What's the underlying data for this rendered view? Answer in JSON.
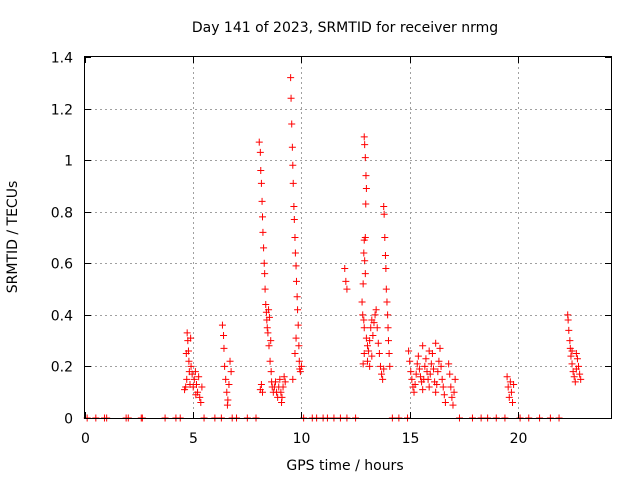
{
  "chart_data": {
    "type": "scatter",
    "title": "Day 141 of 2023, SRMTID for receiver nrmg",
    "xlabel": "GPS time / hours",
    "ylabel": "SRMTID / TECUs",
    "xlim": [
      0,
      24.3
    ],
    "ylim": [
      0,
      1.4
    ],
    "xticks": [
      0,
      5,
      10,
      15,
      20
    ],
    "xtick_labels": [
      "0",
      "5",
      "10",
      "15",
      "20"
    ],
    "yticks": [
      0,
      0.2,
      0.4,
      0.6,
      0.8,
      1,
      1.2,
      1.4
    ],
    "ytick_labels": [
      "0",
      "0.2",
      "0.4",
      "0.6",
      "0.8",
      "1",
      "1.2",
      "1.4"
    ],
    "grid": true,
    "marker": "+",
    "color": "#ff0000",
    "series": [
      {
        "name": "SRMTID",
        "points": [
          [
            0.1,
            0
          ],
          [
            0.5,
            0
          ],
          [
            0.9,
            0
          ],
          [
            1.0,
            0
          ],
          [
            1.9,
            0
          ],
          [
            2.0,
            0
          ],
          [
            2.6,
            0
          ],
          [
            2.65,
            0
          ],
          [
            3.7,
            0
          ],
          [
            4.2,
            0
          ],
          [
            4.4,
            0
          ],
          [
            4.6,
            0.11
          ],
          [
            4.65,
            0.12
          ],
          [
            4.7,
            0.15
          ],
          [
            4.72,
            0.33
          ],
          [
            4.75,
            0.3
          ],
          [
            4.78,
            0.26
          ],
          [
            4.8,
            0.22
          ],
          [
            4.82,
            0.18
          ],
          [
            4.85,
            0.13
          ],
          [
            4.9,
            0.2
          ],
          [
            4.95,
            0.17
          ],
          [
            5.0,
            0.12
          ],
          [
            5.05,
            0.15
          ],
          [
            5.1,
            0.18
          ],
          [
            5.15,
            0.13
          ],
          [
            5.2,
            0.1
          ],
          [
            5.3,
            0.08
          ],
          [
            5.35,
            0.06
          ],
          [
            5.4,
            0.12
          ],
          [
            4.68,
            0.25
          ],
          [
            4.88,
            0.31
          ],
          [
            5.12,
            0.09
          ],
          [
            5.25,
            0.16
          ],
          [
            5.5,
            0
          ],
          [
            6.0,
            0
          ],
          [
            6.3,
            0
          ],
          [
            6.35,
            0.36
          ],
          [
            6.4,
            0.32
          ],
          [
            6.45,
            0.2
          ],
          [
            6.5,
            0.15
          ],
          [
            6.55,
            0.1
          ],
          [
            6.6,
            0.07
          ],
          [
            6.65,
            0.13
          ],
          [
            6.7,
            0.22
          ],
          [
            6.75,
            0.18
          ],
          [
            6.42,
            0.27
          ],
          [
            6.58,
            0.05
          ],
          [
            6.8,
            0
          ],
          [
            7.0,
            0
          ],
          [
            7.5,
            0
          ],
          [
            7.9,
            0
          ],
          [
            8.05,
            1.07
          ],
          [
            8.1,
            1.03
          ],
          [
            8.12,
            0.96
          ],
          [
            8.15,
            0.91
          ],
          [
            8.18,
            0.84
          ],
          [
            8.2,
            0.78
          ],
          [
            8.22,
            0.72
          ],
          [
            8.25,
            0.66
          ],
          [
            8.28,
            0.6
          ],
          [
            8.3,
            0.56
          ],
          [
            8.32,
            0.5
          ],
          [
            8.35,
            0.44
          ],
          [
            8.38,
            0.41
          ],
          [
            8.4,
            0.38
          ],
          [
            8.42,
            0.35
          ],
          [
            8.45,
            0.33
          ],
          [
            8.5,
            0.28
          ],
          [
            8.55,
            0.22
          ],
          [
            8.6,
            0.18
          ],
          [
            8.62,
            0.14
          ],
          [
            8.65,
            0.12
          ],
          [
            8.7,
            0.1
          ],
          [
            8.75,
            0.12
          ],
          [
            8.8,
            0.14
          ],
          [
            8.85,
            0.1
          ],
          [
            8.9,
            0.08
          ],
          [
            8.95,
            0.12
          ],
          [
            9.0,
            0.15
          ],
          [
            9.05,
            0.1
          ],
          [
            9.1,
            0.08
          ],
          [
            9.15,
            0.12
          ],
          [
            9.2,
            0.16
          ],
          [
            9.25,
            0.14
          ],
          [
            8.1,
            0.11
          ],
          [
            8.15,
            0.13
          ],
          [
            8.2,
            0.1
          ],
          [
            8.48,
            0.42
          ],
          [
            8.52,
            0.39
          ],
          [
            8.58,
            0.3
          ],
          [
            9.08,
            0.06
          ],
          [
            9.5,
            1.32
          ],
          [
            9.52,
            1.24
          ],
          [
            9.55,
            1.14
          ],
          [
            9.58,
            1.05
          ],
          [
            9.6,
            0.98
          ],
          [
            9.62,
            0.91
          ],
          [
            9.65,
            0.82
          ],
          [
            9.67,
            0.77
          ],
          [
            9.7,
            0.7
          ],
          [
            9.72,
            0.64
          ],
          [
            9.75,
            0.59
          ],
          [
            9.77,
            0.53
          ],
          [
            9.8,
            0.47
          ],
          [
            9.82,
            0.42
          ],
          [
            9.85,
            0.36
          ],
          [
            9.88,
            0.28
          ],
          [
            9.9,
            0.22
          ],
          [
            9.92,
            0.19
          ],
          [
            9.95,
            0.18
          ],
          [
            10.0,
            0.2
          ],
          [
            9.6,
            0.15
          ],
          [
            9.7,
            0.25
          ],
          [
            9.75,
            0.31
          ],
          [
            10.1,
            0
          ],
          [
            10.5,
            0
          ],
          [
            10.7,
            0
          ],
          [
            11.0,
            0
          ],
          [
            11.2,
            0
          ],
          [
            11.5,
            0
          ],
          [
            11.8,
            0
          ],
          [
            12.1,
            0
          ],
          [
            12.5,
            0
          ],
          [
            12.0,
            0.58
          ],
          [
            12.05,
            0.53
          ],
          [
            12.1,
            0.5
          ],
          [
            12.9,
            1.09
          ],
          [
            12.92,
            1.06
          ],
          [
            12.95,
            1.01
          ],
          [
            12.98,
            0.94
          ],
          [
            13.0,
            0.89
          ],
          [
            12.97,
            0.83
          ],
          [
            12.95,
            0.7
          ],
          [
            12.9,
            0.69
          ],
          [
            12.88,
            0.64
          ],
          [
            12.92,
            0.61
          ],
          [
            12.95,
            0.56
          ],
          [
            12.85,
            0.52
          ],
          [
            12.8,
            0.45
          ],
          [
            12.83,
            0.4
          ],
          [
            12.88,
            0.38
          ],
          [
            12.9,
            0.35
          ],
          [
            13.0,
            0.31
          ],
          [
            13.05,
            0.28
          ],
          [
            13.1,
            0.26
          ],
          [
            13.15,
            0.3
          ],
          [
            13.2,
            0.35
          ],
          [
            13.25,
            0.38
          ],
          [
            13.3,
            0.32
          ],
          [
            13.35,
            0.37
          ],
          [
            13.4,
            0.4
          ],
          [
            13.45,
            0.42
          ],
          [
            13.5,
            0.35
          ],
          [
            13.55,
            0.29
          ],
          [
            13.6,
            0.25
          ],
          [
            13.65,
            0.2
          ],
          [
            13.7,
            0.17
          ],
          [
            12.85,
            0.21
          ],
          [
            12.9,
            0.25
          ],
          [
            13.05,
            0.22
          ],
          [
            13.15,
            0.2
          ],
          [
            13.25,
            0.24
          ],
          [
            13.8,
            0.82
          ],
          [
            13.82,
            0.79
          ],
          [
            13.85,
            0.7
          ],
          [
            13.88,
            0.63
          ],
          [
            13.9,
            0.58
          ],
          [
            13.92,
            0.5
          ],
          [
            13.95,
            0.45
          ],
          [
            13.98,
            0.4
          ],
          [
            14.0,
            0.35
          ],
          [
            14.02,
            0.3
          ],
          [
            14.05,
            0.25
          ],
          [
            14.08,
            0.2
          ],
          [
            13.75,
            0.15
          ],
          [
            13.8,
            0.19
          ],
          [
            14.2,
            0
          ],
          [
            14.5,
            0
          ],
          [
            14.9,
            0
          ],
          [
            14.95,
            0.26
          ],
          [
            15.0,
            0.22
          ],
          [
            15.05,
            0.18
          ],
          [
            15.1,
            0.15
          ],
          [
            15.15,
            0.12
          ],
          [
            15.2,
            0.1
          ],
          [
            15.25,
            0.13
          ],
          [
            15.3,
            0.17
          ],
          [
            15.35,
            0.21
          ],
          [
            15.4,
            0.24
          ],
          [
            15.45,
            0.19
          ],
          [
            15.5,
            0.16
          ],
          [
            15.55,
            0.14
          ],
          [
            15.6,
            0.11
          ],
          [
            15.65,
            0.15
          ],
          [
            15.7,
            0.2
          ],
          [
            15.75,
            0.23
          ],
          [
            15.8,
            0.18
          ],
          [
            15.85,
            0.15
          ],
          [
            15.9,
            0.12
          ],
          [
            15.95,
            0.17
          ],
          [
            16.0,
            0.21
          ],
          [
            16.05,
            0.25
          ],
          [
            16.1,
            0.19
          ],
          [
            16.15,
            0.14
          ],
          [
            16.2,
            0.1
          ],
          [
            16.25,
            0.13
          ],
          [
            16.3,
            0.18
          ],
          [
            16.35,
            0.22
          ],
          [
            16.4,
            0.27
          ],
          [
            16.45,
            0.2
          ],
          [
            16.5,
            0.15
          ],
          [
            16.55,
            0.12
          ],
          [
            16.6,
            0.09
          ],
          [
            16.65,
            0.06
          ],
          [
            15.6,
            0.28
          ],
          [
            15.9,
            0.26
          ],
          [
            16.2,
            0.29
          ],
          [
            16.8,
            0.21
          ],
          [
            16.85,
            0.17
          ],
          [
            16.9,
            0.12
          ],
          [
            16.95,
            0.08
          ],
          [
            17.0,
            0.05
          ],
          [
            17.05,
            0.1
          ],
          [
            17.1,
            0.15
          ],
          [
            17.3,
            0
          ],
          [
            17.9,
            0
          ],
          [
            18.3,
            0
          ],
          [
            18.6,
            0
          ],
          [
            19.0,
            0
          ],
          [
            19.4,
            0
          ],
          [
            19.5,
            0.16
          ],
          [
            19.55,
            0.12
          ],
          [
            19.6,
            0.08
          ],
          [
            19.65,
            0.14
          ],
          [
            19.7,
            0.1
          ],
          [
            19.75,
            0.06
          ],
          [
            19.8,
            0.13
          ],
          [
            20.1,
            0
          ],
          [
            20.5,
            0
          ],
          [
            21.0,
            0
          ],
          [
            21.5,
            0
          ],
          [
            21.9,
            0
          ],
          [
            22.3,
            0.4
          ],
          [
            22.32,
            0.38
          ],
          [
            22.35,
            0.34
          ],
          [
            22.4,
            0.3
          ],
          [
            22.42,
            0.27
          ],
          [
            22.45,
            0.24
          ],
          [
            22.5,
            0.21
          ],
          [
            22.55,
            0.18
          ],
          [
            22.6,
            0.16
          ],
          [
            22.65,
            0.14
          ],
          [
            22.7,
            0.19
          ],
          [
            22.75,
            0.23
          ],
          [
            22.8,
            0.2
          ],
          [
            22.85,
            0.17
          ],
          [
            22.9,
            0.15
          ],
          [
            22.5,
            0.26
          ],
          [
            22.7,
            0.25
          ]
        ]
      }
    ]
  }
}
